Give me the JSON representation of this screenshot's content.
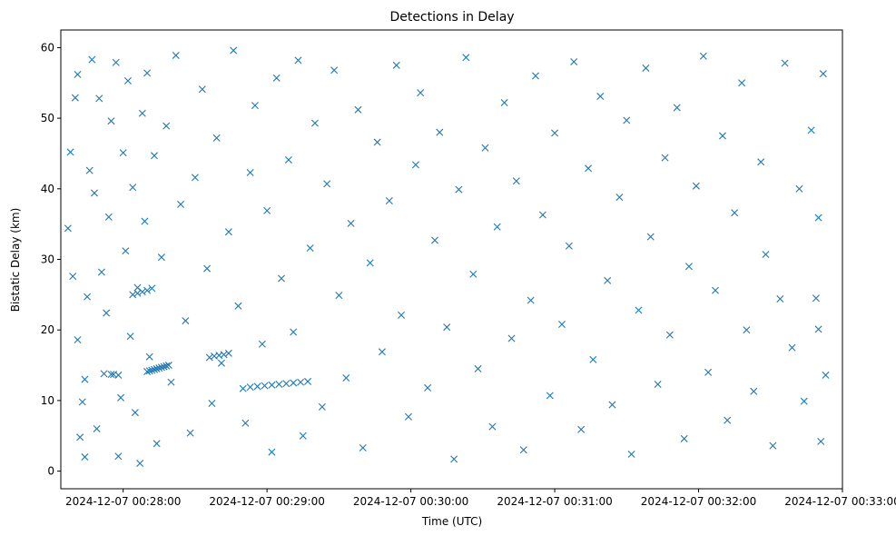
{
  "chart_data": {
    "type": "scatter",
    "title": "Detections in Delay",
    "xlabel": "Time (UTC)",
    "ylabel": "Bistatic Delay (km)",
    "marker": "x",
    "color": "#1f77b4",
    "grid": false,
    "legend": "none",
    "x_axis": {
      "kind": "time",
      "range": [
        "2024-12-07 00:27:34",
        "2024-12-07 00:33:00"
      ],
      "ticks": [
        "2024-12-07 00:28:00",
        "2024-12-07 00:29:00",
        "2024-12-07 00:30:00",
        "2024-12-07 00:31:00",
        "2024-12-07 00:32:00",
        "2024-12-07 00:33:00"
      ]
    },
    "y_axis": {
      "range": [
        -2.5,
        62.5
      ],
      "ticks": [
        0,
        10,
        20,
        30,
        40,
        50,
        60
      ]
    },
    "series": [
      {
        "points": [
          [
            "00:27:37",
            34.4
          ],
          [
            "00:27:38",
            45.2
          ],
          [
            "00:27:39",
            27.6
          ],
          [
            "00:27:40",
            52.9
          ],
          [
            "00:27:41",
            56.2
          ],
          [
            "00:27:41",
            18.6
          ],
          [
            "00:27:42",
            4.8
          ],
          [
            "00:27:43",
            9.8
          ],
          [
            "00:27:44",
            2.0
          ],
          [
            "00:27:44",
            13.0
          ],
          [
            "00:27:45",
            24.7
          ],
          [
            "00:27:46",
            42.6
          ],
          [
            "00:27:47",
            58.3
          ],
          [
            "00:27:48",
            39.4
          ],
          [
            "00:27:49",
            6.0
          ],
          [
            "00:27:50",
            52.8
          ],
          [
            "00:27:51",
            28.2
          ],
          [
            "00:27:52",
            13.8
          ],
          [
            "00:27:53",
            22.4
          ],
          [
            "00:27:54",
            36.0
          ],
          [
            "00:27:55",
            49.6
          ],
          [
            "00:27:57",
            57.9
          ],
          [
            "00:27:58",
            2.1
          ],
          [
            "00:27:59",
            10.4
          ],
          [
            "00:28:00",
            45.1
          ],
          [
            "00:28:01",
            31.2
          ],
          [
            "00:28:02",
            55.3
          ],
          [
            "00:28:03",
            19.1
          ],
          [
            "00:28:04",
            40.2
          ],
          [
            "00:28:05",
            8.3
          ],
          [
            "00:28:06",
            26.0
          ],
          [
            "00:28:07",
            1.1
          ],
          [
            "00:28:08",
            50.7
          ],
          [
            "00:28:09",
            35.4
          ],
          [
            "00:28:10",
            56.4
          ],
          [
            "00:28:11",
            16.2
          ],
          [
            "00:28:13",
            44.7
          ],
          [
            "00:28:14",
            3.9
          ],
          [
            "00:28:16",
            30.3
          ],
          [
            "00:28:18",
            48.9
          ],
          [
            "00:28:20",
            12.6
          ],
          [
            "00:28:22",
            58.9
          ],
          [
            "00:28:24",
            37.8
          ],
          [
            "00:28:26",
            21.3
          ],
          [
            "00:28:28",
            5.4
          ],
          [
            "00:28:30",
            41.6
          ],
          [
            "00:28:33",
            54.1
          ],
          [
            "00:28:35",
            28.7
          ],
          [
            "00:28:37",
            9.6
          ],
          [
            "00:28:39",
            47.2
          ],
          [
            "00:28:41",
            15.3
          ],
          [
            "00:28:44",
            33.9
          ],
          [
            "00:28:46",
            59.6
          ],
          [
            "00:28:48",
            23.4
          ],
          [
            "00:28:51",
            6.8
          ],
          [
            "00:28:53",
            42.3
          ],
          [
            "00:28:55",
            51.8
          ],
          [
            "00:28:58",
            18.0
          ],
          [
            "00:29:00",
            36.9
          ],
          [
            "00:29:02",
            2.7
          ],
          [
            "00:29:04",
            55.7
          ],
          [
            "00:29:06",
            27.3
          ],
          [
            "00:29:09",
            44.1
          ],
          [
            "00:29:11",
            19.7
          ],
          [
            "00:29:13",
            58.2
          ],
          [
            "00:29:15",
            5.0
          ],
          [
            "00:29:18",
            31.6
          ],
          [
            "00:29:20",
            49.3
          ],
          [
            "00:29:23",
            9.1
          ],
          [
            "00:29:25",
            40.7
          ],
          [
            "00:29:28",
            56.8
          ],
          [
            "00:29:30",
            24.9
          ],
          [
            "00:29:33",
            13.2
          ],
          [
            "00:29:35",
            35.1
          ],
          [
            "00:29:38",
            51.2
          ],
          [
            "00:29:40",
            3.3
          ],
          [
            "00:29:43",
            29.5
          ],
          [
            "00:29:46",
            46.6
          ],
          [
            "00:29:48",
            16.9
          ],
          [
            "00:29:51",
            38.3
          ],
          [
            "00:29:54",
            57.5
          ],
          [
            "00:29:56",
            22.1
          ],
          [
            "00:29:59",
            7.7
          ],
          [
            "00:30:02",
            43.4
          ],
          [
            "00:30:04",
            53.6
          ],
          [
            "00:30:07",
            11.8
          ],
          [
            "00:30:10",
            32.7
          ],
          [
            "00:30:12",
            48.0
          ],
          [
            "00:30:15",
            20.4
          ],
          [
            "00:30:18",
            1.7
          ],
          [
            "00:30:20",
            39.9
          ],
          [
            "00:30:23",
            58.6
          ],
          [
            "00:30:26",
            27.9
          ],
          [
            "00:30:28",
            14.5
          ],
          [
            "00:30:31",
            45.8
          ],
          [
            "00:30:34",
            6.3
          ],
          [
            "00:30:36",
            34.6
          ],
          [
            "00:30:39",
            52.2
          ],
          [
            "00:30:42",
            18.8
          ],
          [
            "00:30:44",
            41.1
          ],
          [
            "00:30:47",
            3.0
          ],
          [
            "00:30:50",
            24.2
          ],
          [
            "00:30:52",
            56.0
          ],
          [
            "00:30:55",
            36.3
          ],
          [
            "00:30:58",
            10.7
          ],
          [
            "00:31:00",
            47.9
          ],
          [
            "00:31:03",
            20.8
          ],
          [
            "00:31:06",
            31.9
          ],
          [
            "00:31:08",
            58.0
          ],
          [
            "00:31:11",
            5.9
          ],
          [
            "00:31:14",
            42.9
          ],
          [
            "00:31:16",
            15.8
          ],
          [
            "00:31:19",
            53.1
          ],
          [
            "00:31:22",
            27.0
          ],
          [
            "00:31:24",
            9.4
          ],
          [
            "00:31:27",
            38.8
          ],
          [
            "00:31:30",
            49.7
          ],
          [
            "00:31:32",
            2.4
          ],
          [
            "00:31:35",
            22.8
          ],
          [
            "00:31:38",
            57.1
          ],
          [
            "00:31:40",
            33.2
          ],
          [
            "00:31:43",
            12.3
          ],
          [
            "00:31:46",
            44.4
          ],
          [
            "00:31:48",
            19.3
          ],
          [
            "00:31:51",
            51.5
          ],
          [
            "00:31:54",
            4.6
          ],
          [
            "00:31:56",
            29.0
          ],
          [
            "00:31:59",
            40.4
          ],
          [
            "00:32:02",
            58.8
          ],
          [
            "00:32:04",
            14.0
          ],
          [
            "00:32:07",
            25.6
          ],
          [
            "00:32:10",
            47.5
          ],
          [
            "00:32:12",
            7.2
          ],
          [
            "00:32:15",
            36.6
          ],
          [
            "00:32:18",
            55.0
          ],
          [
            "00:32:20",
            20.0
          ],
          [
            "00:32:23",
            11.3
          ],
          [
            "00:32:26",
            43.8
          ],
          [
            "00:32:28",
            30.7
          ],
          [
            "00:32:31",
            3.6
          ],
          [
            "00:32:34",
            24.4
          ],
          [
            "00:32:36",
            57.8
          ],
          [
            "00:32:39",
            17.5
          ],
          [
            "00:32:42",
            40.0
          ],
          [
            "00:32:44",
            9.9
          ],
          [
            "00:32:47",
            48.3
          ],
          [
            "00:32:49",
            24.5
          ],
          [
            "00:32:50",
            20.1
          ],
          [
            "00:32:50",
            35.9
          ],
          [
            "00:32:51",
            4.2
          ],
          [
            "00:32:52",
            56.3
          ],
          [
            "00:32:53",
            13.6
          ]
        ]
      },
      {
        "points": [
          [
            "00:27:55",
            13.7
          ],
          [
            "00:27:56",
            13.7
          ],
          [
            "00:27:58",
            13.6
          ],
          [
            "00:28:10",
            14.1
          ],
          [
            "00:28:11",
            14.2
          ],
          [
            "00:28:12",
            14.3
          ],
          [
            "00:28:13",
            14.4
          ],
          [
            "00:28:14",
            14.5
          ],
          [
            "00:28:15",
            14.6
          ],
          [
            "00:28:16",
            14.7
          ],
          [
            "00:28:17",
            14.8
          ],
          [
            "00:28:18",
            14.9
          ],
          [
            "00:28:19",
            15.0
          ],
          [
            "00:28:04",
            25.0
          ],
          [
            "00:28:06",
            25.2
          ],
          [
            "00:28:08",
            25.4
          ],
          [
            "00:28:10",
            25.6
          ],
          [
            "00:28:12",
            25.9
          ],
          [
            "00:28:36",
            16.1
          ],
          [
            "00:28:38",
            16.3
          ],
          [
            "00:28:40",
            16.4
          ],
          [
            "00:28:42",
            16.5
          ],
          [
            "00:28:44",
            16.7
          ],
          [
            "00:28:50",
            11.7
          ],
          [
            "00:28:53",
            11.9
          ],
          [
            "00:28:56",
            12.0
          ],
          [
            "00:28:59",
            12.1
          ],
          [
            "00:29:02",
            12.2
          ],
          [
            "00:29:05",
            12.3
          ],
          [
            "00:29:08",
            12.4
          ],
          [
            "00:29:11",
            12.5
          ],
          [
            "00:29:14",
            12.6
          ],
          [
            "00:29:17",
            12.7
          ]
        ]
      }
    ]
  }
}
